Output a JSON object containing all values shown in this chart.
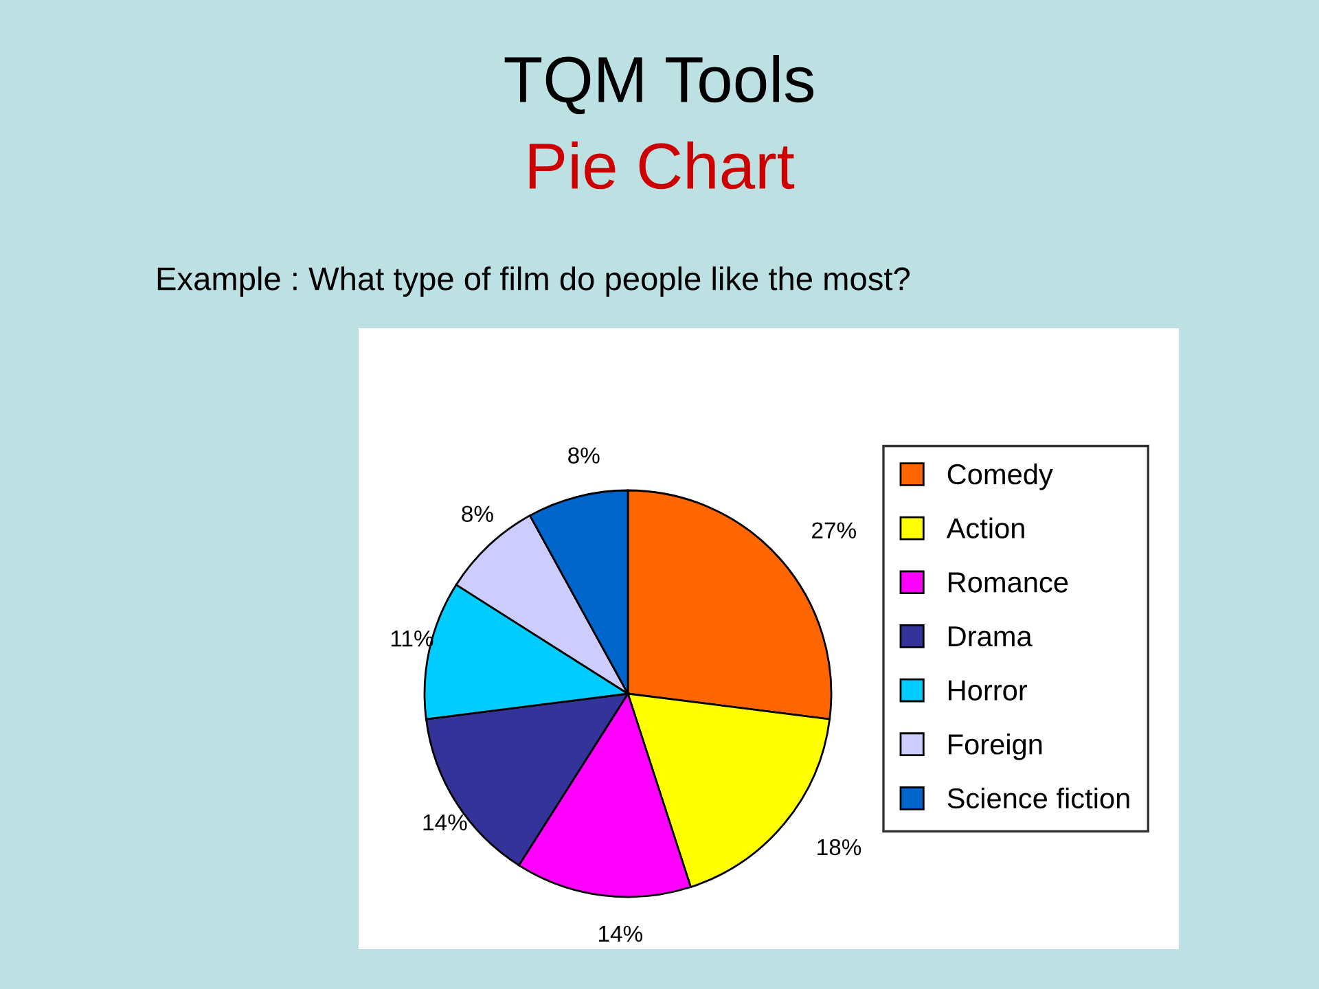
{
  "chart_data": {
    "type": "pie",
    "title": "TQM Tools",
    "subtitle": "Pie Chart",
    "annotations": [
      "Example : What type of film do people like the most?"
    ],
    "categories": [
      "Comedy",
      "Action",
      "Romance",
      "Drama",
      "Horror",
      "Foreign",
      "Science fiction"
    ],
    "values": [
      27,
      18,
      14,
      14,
      11,
      8,
      8
    ],
    "value_labels": [
      "27%",
      "18%",
      "14%",
      "14%",
      "11%",
      "8%",
      "8%"
    ],
    "colors": [
      "#ff6600",
      "#ffff00",
      "#ff00ff",
      "#333399",
      "#00ccff",
      "#ccccff",
      "#0066cc"
    ],
    "legend": "right"
  }
}
